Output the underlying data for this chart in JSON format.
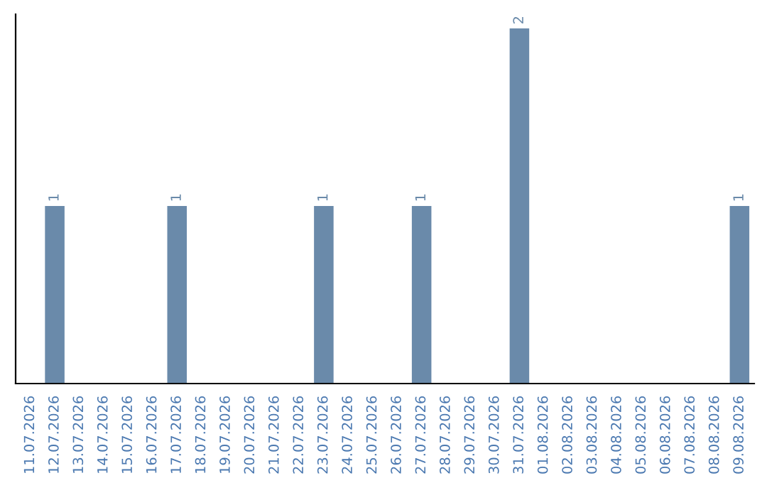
{
  "chart_data": {
    "type": "bar",
    "categories": [
      "11.07.2026",
      "12.07.2026",
      "13.07.2026",
      "14.07.2026",
      "15.07.2026",
      "16.07.2026",
      "17.07.2026",
      "18.07.2026",
      "19.07.2026",
      "20.07.2026",
      "21.07.2026",
      "22.07.2026",
      "23.07.2026",
      "24.07.2026",
      "25.07.2026",
      "26.07.2026",
      "27.07.2026",
      "28.07.2026",
      "29.07.2026",
      "30.07.2026",
      "31.07.2026",
      "01.08.2026",
      "02.08.2026",
      "03.08.2026",
      "04.08.2026",
      "05.08.2026",
      "06.08.2026",
      "07.08.2026",
      "08.08.2026",
      "09.08.2026"
    ],
    "values": [
      0,
      1,
      0,
      0,
      0,
      0,
      1,
      0,
      0,
      0,
      0,
      0,
      1,
      0,
      0,
      0,
      1,
      0,
      0,
      0,
      2,
      0,
      0,
      0,
      0,
      0,
      0,
      0,
      0,
      1
    ],
    "value_labels": [
      null,
      "1",
      null,
      null,
      null,
      null,
      "1",
      null,
      null,
      null,
      null,
      null,
      "1",
      null,
      null,
      null,
      "1",
      null,
      null,
      null,
      "2",
      null,
      null,
      null,
      null,
      null,
      null,
      null,
      null,
      "1"
    ],
    "color": "#6a8aaa",
    "tick_labels": "x",
    "grid": false,
    "legend": false
  }
}
